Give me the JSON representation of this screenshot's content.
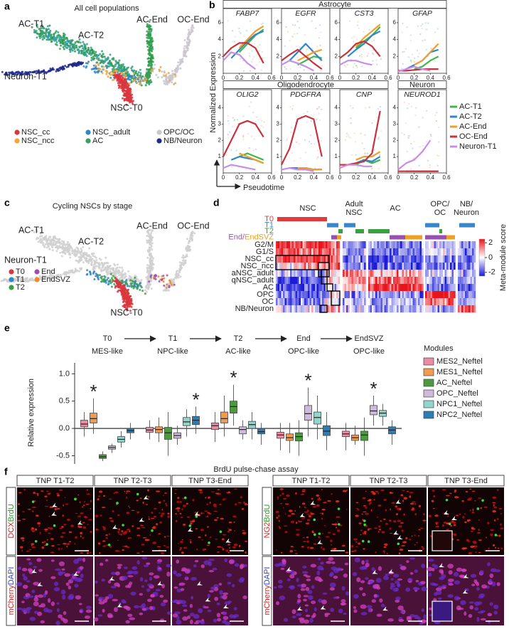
{
  "panel_a": {
    "letter": "a",
    "title": "All cell populations",
    "labels": [
      {
        "text": "AC-T1",
        "color": "#2e9a44"
      },
      {
        "text": "AC-T2",
        "color": "#2e9a44"
      },
      {
        "text": "AC-End",
        "color": "#2e9a44"
      },
      {
        "text": "OC-End",
        "color": "#a05cb8"
      },
      {
        "text": "Neuron-T1",
        "color": "#1f2a8a"
      },
      {
        "text": "NSC-T0",
        "color": "#d9363e"
      }
    ],
    "legend": [
      {
        "name": "NSC_cc",
        "color": "#d9363e"
      },
      {
        "name": "NSC_adult",
        "color": "#2f86c8"
      },
      {
        "name": "OPC/OC",
        "color": "#c8c8c8"
      },
      {
        "name": "NSC_ncc",
        "color": "#f4a535"
      },
      {
        "name": "AC",
        "color": "#3aa060"
      },
      {
        "name": "NB/Neuron",
        "color": "#1f2a8a"
      }
    ]
  },
  "panel_b": {
    "letter": "b",
    "groups": [
      "Astrocyte",
      "Oligodendrocyte",
      "Neuron"
    ],
    "ylabel": "Normalized Expression",
    "xlabel": "Pseudotime",
    "x": [
      0,
      0.1,
      0.2,
      0.3,
      0.4,
      0.5
    ],
    "xlim": [
      0,
      0.6
    ],
    "xticks": [
      0,
      0.2,
      0.4,
      0.6
    ],
    "series": [
      {
        "name": "AC-T1",
        "color": "#3cb84a"
      },
      {
        "name": "AC-T2",
        "color": "#2f86d0"
      },
      {
        "name": "AC-End",
        "color": "#f39c2a"
      },
      {
        "name": "OC-End",
        "color": "#c8323c"
      },
      {
        "name": "Neuron-T1",
        "color": "#c88de8"
      }
    ],
    "plots": [
      {
        "title": "FABP7",
        "ylim": [
          0,
          6.5
        ],
        "yticks": [
          2,
          4,
          6
        ],
        "values": [
          [
            null,
            null,
            2.5,
            3.5,
            4.5,
            5.2
          ],
          [
            null,
            1.8,
            2.8,
            3.8,
            4.6,
            5
          ],
          [
            null,
            null,
            3,
            4,
            5,
            5.6
          ],
          [
            2,
            3,
            3.6,
            3.6,
            3,
            1.2
          ],
          [
            1.5,
            2.5,
            2.2,
            1.2,
            0.5,
            null
          ]
        ]
      },
      {
        "title": "EGFR",
        "ylim": [
          0,
          6.5
        ],
        "yticks": [
          2,
          4,
          6
        ],
        "values": [
          [
            null,
            null,
            1,
            1.5,
            2,
            1.8
          ],
          [
            null,
            1.5,
            2.5,
            3.5,
            2.5,
            1.5
          ],
          [
            null,
            null,
            1.5,
            2,
            2.5,
            2.8
          ],
          [
            1.5,
            2.2,
            2.8,
            2,
            1.2,
            0.5
          ],
          [
            1,
            1.5,
            1.2,
            0.8,
            0.3,
            null
          ]
        ]
      },
      {
        "title": "CST3",
        "ylim": [
          0,
          6.5
        ],
        "yticks": [
          2,
          4,
          6
        ],
        "values": [
          [
            null,
            null,
            3,
            3.8,
            4.5,
            5.5
          ],
          [
            null,
            2,
            2.8,
            3.5,
            4.5,
            5
          ],
          [
            null,
            null,
            3.2,
            4.2,
            5,
            5.8
          ],
          [
            1.8,
            2.5,
            3.5,
            3.8,
            3.2,
            2
          ],
          [
            1,
            1.5,
            1.5,
            1.2,
            1,
            null
          ]
        ]
      },
      {
        "title": "GFAP",
        "ylim": [
          0,
          6.5
        ],
        "yticks": [
          2,
          4,
          6
        ],
        "values": [
          [
            null,
            null,
            0.5,
            0.8,
            1.5,
            2
          ],
          [
            null,
            0.5,
            1,
            1.5,
            2.5,
            2.8
          ],
          [
            null,
            null,
            1,
            1.5,
            2.5,
            3.5
          ],
          [
            0.3,
            0.3,
            0.4,
            0.5,
            0.5,
            0.5
          ],
          [
            0.2,
            0.5,
            0.8,
            0.5,
            0.3,
            null
          ]
        ]
      },
      {
        "title": "OLIG2",
        "ylim": [
          0,
          4.5
        ],
        "yticks": [
          1,
          2,
          3,
          4
        ],
        "values": [
          [
            null,
            null,
            1,
            1.2,
            1,
            0.8
          ],
          [
            null,
            0.8,
            1,
            0.9,
            0.8,
            0.6
          ],
          [
            null,
            null,
            1.2,
            1,
            0.8,
            0.6
          ],
          [
            1,
            2,
            3,
            3.2,
            3,
            2.2
          ],
          [
            0.3,
            0.5,
            0.4,
            0.3,
            0.2,
            null
          ]
        ]
      },
      {
        "title": "PDGFRA",
        "ylim": [
          0,
          4.5
        ],
        "yticks": [
          1,
          2,
          3,
          4
        ],
        "values": [
          [
            null,
            null,
            0.2,
            0.3,
            0.2,
            0.2
          ],
          [
            null,
            0.3,
            0.3,
            0.3,
            0.2,
            0.2
          ],
          [
            null,
            null,
            0.3,
            0.3,
            0.2,
            0.2
          ],
          [
            0.5,
            1.5,
            3.3,
            3.5,
            3.3,
            1
          ],
          [
            0.2,
            0.3,
            0.2,
            0.2,
            0.1,
            null
          ]
        ]
      },
      {
        "title": "CNP",
        "ylim": [
          0,
          4.5
        ],
        "yticks": [
          1,
          2,
          3,
          4
        ],
        "values": [
          [
            null,
            null,
            0.5,
            0.8,
            0.6,
            0.8
          ],
          [
            null,
            0.5,
            0.6,
            0.8,
            0.7,
            1
          ],
          [
            null,
            null,
            0.8,
            1,
            1,
            1.3
          ],
          [
            0.5,
            0.5,
            0.6,
            0.7,
            1.2,
            3.8
          ],
          [
            0.3,
            0.5,
            0.5,
            0.4,
            0.4,
            null
          ]
        ]
      },
      {
        "title": "NEUROD1",
        "ylim": [
          0,
          4.5
        ],
        "yticks": [
          1,
          2,
          3,
          4
        ],
        "values": [
          [
            null,
            null,
            0.1,
            0.1,
            0.1,
            0.1
          ],
          [
            null,
            0.1,
            0.1,
            0.1,
            0.1,
            0.1
          ],
          [
            null,
            null,
            0.1,
            0.1,
            0.1,
            0.1
          ],
          [
            0.1,
            0.1,
            0.1,
            0.1,
            0.1,
            0.1
          ],
          [
            0.2,
            0.6,
            0.8,
            1.3,
            2,
            null
          ]
        ]
      }
    ]
  },
  "panel_c": {
    "letter": "c",
    "title": "Cycling NSCs by stage",
    "labels": [
      {
        "text": "AC-T1",
        "color": "#2e9a44"
      },
      {
        "text": "AC-T2",
        "color": "#2e9a44"
      },
      {
        "text": "AC-End",
        "color": "#2e9a44"
      },
      {
        "text": "OC-End",
        "color": "#a05cb8"
      },
      {
        "text": "Neuron-T1",
        "color": "#1f2a8a"
      },
      {
        "text": "NSC-T0",
        "color": "#d9363e"
      }
    ],
    "legend": [
      {
        "name": "T0",
        "color": "#d9363e"
      },
      {
        "name": "T1",
        "color": "#2f86c8"
      },
      {
        "name": "T2",
        "color": "#3aa040"
      },
      {
        "name": "End",
        "color": "#9b4fb5"
      },
      {
        "name": "EndSVZ",
        "color": "#f08a2a"
      }
    ]
  },
  "panel_d": {
    "letter": "d",
    "columns": [
      [
        "NSC"
      ],
      [
        "Adult",
        "NSC"
      ],
      [
        "AC"
      ],
      [
        "OPC/",
        "OC"
      ],
      [
        "NB/",
        "Neuron"
      ]
    ],
    "stage_rows": [
      [
        {
          "text": "T0",
          "color": "#e23b3b"
        }
      ],
      [
        {
          "text": "T1",
          "color": "#3a86c8"
        }
      ],
      [
        {
          "text": "T2",
          "color": "#3aa040"
        }
      ],
      [
        {
          "text": "End/",
          "color": "#9b4fb5"
        },
        {
          "text": "EndSVZ",
          "color": "#f0a020"
        }
      ]
    ],
    "rows": [
      "G2/M",
      "G1/S",
      "NSC_cc",
      "NSC_ncc",
      "aNSC_adult",
      "qNSC_adult",
      "AC",
      "OPC",
      "OC",
      "NB/Neuron"
    ],
    "colorbar": {
      "label": "Meta-module score",
      "lim": [
        -2.5,
        2.5
      ],
      "ticks": [
        2,
        0,
        -2
      ]
    }
  },
  "panel_e": {
    "letter": "e",
    "stages": [
      {
        "name": "T0",
        "sub": "MES-like",
        "color": "#e87830"
      },
      {
        "name": "T1",
        "sub": "NPC-like",
        "color": "#2a3590"
      },
      {
        "name": "T2",
        "sub": "AC-like",
        "color": "#2e9a44"
      },
      {
        "name": "End",
        "sub": "OPC-like",
        "color": "#8a4fb0"
      },
      {
        "name": "EndSVZ",
        "sub": "OPC-like",
        "color": "#8a4fb0"
      }
    ],
    "ylabel": "Relative expression",
    "ylim": [
      -0.65,
      1.2
    ],
    "yticks": [
      -0.5,
      {
        "value": 0,
        "label": "0.0"
      },
      0.5,
      {
        "value": 1,
        "label": "1.0"
      }
    ],
    "legend_title": "Modules",
    "series": [
      {
        "name": "MES2_Neftel",
        "color": "#ec8ca4",
        "values": [
          [
            -0.15,
            0.03,
            0.08,
            0.15,
            0.3
          ],
          [
            -0.2,
            -0.07,
            -0.03,
            0.02,
            0.15
          ],
          [
            -0.25,
            -0.02,
            0.05,
            0.1,
            0.3
          ],
          [
            -0.4,
            -0.18,
            -0.12,
            -0.07,
            0.1
          ],
          [
            -0.4,
            -0.15,
            -0.1,
            -0.05,
            0.1
          ]
        ]
      },
      {
        "name": "MES1_Neftel",
        "color": "#f29a4e",
        "values": [
          [
            -0.1,
            0.1,
            0.18,
            0.28,
            0.55
          ],
          [
            -0.25,
            -0.08,
            -0.02,
            0.03,
            0.2
          ],
          [
            -0.15,
            0.1,
            0.18,
            0.3,
            0.6
          ],
          [
            -0.45,
            -0.22,
            -0.17,
            -0.1,
            0.1
          ],
          [
            -0.3,
            -0.22,
            -0.17,
            -0.12,
            0.05
          ]
        ]
      },
      {
        "name": "AC_Neftel",
        "color": "#4d9a3e",
        "values": [
          [
            -0.6,
            -0.55,
            -0.52,
            -0.48,
            -0.42
          ],
          [
            -0.5,
            -0.2,
            -0.08,
            0.02,
            0.3
          ],
          [
            0.05,
            0.28,
            0.4,
            0.5,
            0.8
          ],
          [
            -0.5,
            -0.23,
            -0.15,
            -0.08,
            0.15
          ],
          [
            -0.5,
            -0.22,
            -0.12,
            -0.05,
            0.2
          ]
        ]
      },
      {
        "name": "OPC_Neftel",
        "color": "#cdbadc",
        "values": [
          [
            -0.45,
            -0.38,
            -0.35,
            -0.32,
            -0.28
          ],
          [
            -0.3,
            -0.18,
            -0.13,
            -0.08,
            0.05
          ],
          [
            -0.2,
            -0.1,
            -0.02,
            0.03,
            0.15
          ],
          [
            -0.15,
            0.15,
            0.27,
            0.42,
            0.75
          ],
          [
            0.05,
            0.25,
            0.32,
            0.42,
            0.6
          ]
        ]
      },
      {
        "name": "NPC1_Neftel",
        "color": "#93d4cb",
        "values": [
          [
            -0.35,
            -0.25,
            -0.2,
            -0.15,
            -0.05
          ],
          [
            -0.15,
            0.05,
            0.12,
            0.2,
            0.35
          ],
          [
            -0.2,
            0,
            0.07,
            0.13,
            0.3
          ],
          [
            -0.2,
            0.08,
            0.2,
            0.3,
            0.6
          ],
          [
            0.05,
            0.22,
            0.28,
            0.33,
            0.45
          ]
        ]
      },
      {
        "name": "NPC2_Neftel",
        "color": "#2b7db4",
        "values": [
          [
            -0.2,
            -0.08,
            -0.04,
            0,
            0.1
          ],
          [
            -0.1,
            0.07,
            0.15,
            0.22,
            0.4
          ],
          [
            -0.3,
            -0.1,
            -0.06,
            0,
            0.1
          ],
          [
            -0.4,
            -0.13,
            -0.05,
            0.05,
            0.3
          ],
          [
            -0.3,
            -0.1,
            -0.03,
            0.03,
            0.15
          ]
        ]
      }
    ],
    "stars": [
      "*",
      "*",
      "*",
      "*",
      "*"
    ]
  },
  "panel_f": {
    "letter": "f",
    "title": "BrdU pulse-chase assay",
    "left": {
      "columns": [
        "TNP T1-T2",
        "TNP T2-T3",
        "TNP T3-End"
      ],
      "rows": [
        [
          {
            "text": "DCX",
            "color": "#e02020"
          },
          {
            "text": "BrdU",
            "color": "#22a022"
          }
        ],
        [
          {
            "text": "mCherry",
            "color": "#e02020"
          },
          {
            "text": "DAPI",
            "color": "#3040d0"
          }
        ]
      ]
    },
    "right": {
      "columns": [
        "TNP T1-T2",
        "TNP T2-T3",
        "TNP T3-End"
      ],
      "rows": [
        [
          {
            "text": "NG2",
            "color": "#e02020"
          },
          {
            "text": "BrdU",
            "color": "#22a022"
          }
        ],
        [
          {
            "text": "mCherry",
            "color": "#e02020"
          },
          {
            "text": "DAPI",
            "color": "#3040d0"
          }
        ]
      ]
    }
  }
}
